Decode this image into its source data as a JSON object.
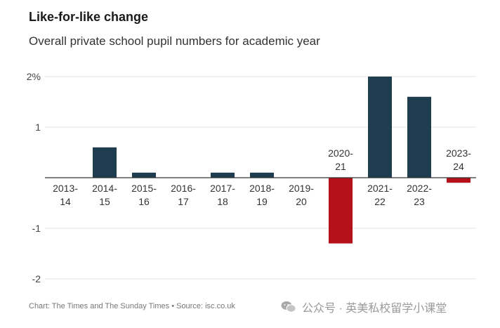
{
  "chart_data": {
    "type": "bar",
    "title": "Like-for-like change",
    "subtitle": "Overall private school pupil numbers for academic year",
    "xlabel": "",
    "ylabel": "",
    "ylim": [
      -2,
      2
    ],
    "yticks": [
      {
        "value": 2,
        "label": "2%"
      },
      {
        "value": 1,
        "label": "1"
      },
      {
        "value": -1,
        "label": "-1"
      },
      {
        "value": -2,
        "label": "-2"
      }
    ],
    "grid": true,
    "categories": [
      [
        "2013-",
        "14"
      ],
      [
        "2014-",
        "15"
      ],
      [
        "2015-",
        "16"
      ],
      [
        "2016-",
        "17"
      ],
      [
        "2017-",
        "18"
      ],
      [
        "2018-",
        "19"
      ],
      [
        "2019-",
        "20"
      ],
      [
        "2020-",
        "21"
      ],
      [
        "2021-",
        "22"
      ],
      [
        "2022-",
        "23"
      ],
      [
        "2023-",
        "24"
      ]
    ],
    "values": [
      0,
      0.6,
      0.1,
      0,
      0.1,
      0.1,
      0,
      -1.3,
      2.0,
      1.6,
      -0.1
    ],
    "colors": {
      "positive": "#1e3d4f",
      "negative": "#b5111a",
      "grid": "#e4e4e4",
      "axis": "#333333"
    },
    "source": "Chart: The Times and The Sunday Times • Source: isc.co.uk"
  },
  "watermark": {
    "icon": "wechat-icon",
    "text": "公众号 · 英美私校留学小课堂"
  }
}
